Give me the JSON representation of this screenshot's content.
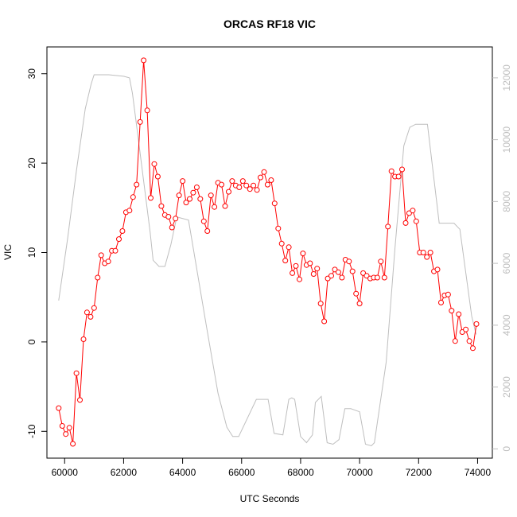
{
  "chart_data": {
    "type": "line",
    "title": "ORCAS RF18 VIC",
    "xlabel": "UTC Seconds",
    "ylabel": "VIC",
    "xlim": [
      59400,
      74500
    ],
    "ylim": [
      -13,
      33
    ],
    "y2lim": [
      -300,
      13000
    ],
    "xticks": [
      60000,
      62000,
      64000,
      66000,
      68000,
      70000,
      72000,
      74000
    ],
    "xtick_labels": [
      "60000",
      "62000",
      "64000",
      "66000",
      "68000",
      "70000",
      "72000",
      "74000"
    ],
    "yticks": [
      -10,
      0,
      10,
      20,
      30
    ],
    "ytick_labels": [
      "-10",
      "0",
      "10",
      "20",
      "30"
    ],
    "y2ticks": [
      0,
      2000,
      4000,
      6000,
      8000,
      10000,
      12000
    ],
    "y2tick_labels": [
      "0",
      "2000",
      "4000",
      "6000",
      "8000",
      "10000",
      "12000"
    ],
    "grid": false,
    "series": [
      {
        "color": "#ff0000",
        "axis": "left",
        "markers": "open-circle",
        "x": [
          59800,
          59920,
          60040,
          60160,
          60280,
          60400,
          60520,
          60640,
          60760,
          60880,
          61000,
          61120,
          61240,
          61360,
          61480,
          61600,
          61720,
          61840,
          61960,
          62080,
          62200,
          62320,
          62440,
          62560,
          62680,
          62800,
          62920,
          63040,
          63160,
          63280,
          63400,
          63520,
          63640,
          63760,
          63880,
          64000,
          64120,
          64240,
          64360,
          64480,
          64600,
          64720,
          64840,
          64960,
          65080,
          65200,
          65320,
          65440,
          65560,
          65680,
          65800,
          65920,
          66040,
          66160,
          66280,
          66400,
          66520,
          66640,
          66760,
          66880,
          67000,
          67120,
          67240,
          67360,
          67480,
          67600,
          67720,
          67840,
          67960,
          68080,
          68200,
          68320,
          68440,
          68560,
          68680,
          68800,
          68920,
          69040,
          69160,
          69280,
          69400,
          69520,
          69640,
          69760,
          69880,
          70000,
          70120,
          70240,
          70360,
          70480,
          70600,
          70720,
          70840,
          70960,
          71080,
          71200,
          71320,
          71440,
          71560,
          71680,
          71800,
          71920,
          72040,
          72160,
          72280,
          72400,
          72520,
          72640,
          72760,
          72880,
          73000,
          73120,
          73240,
          73360,
          73480,
          73600,
          73720,
          73840,
          73960
        ],
        "y": [
          -7.4,
          -9.4,
          -10.3,
          -9.6,
          -11.4,
          -3.5,
          -6.5,
          0.3,
          3.3,
          2.8,
          3.8,
          7.2,
          9.7,
          8.8,
          9.0,
          10.2,
          10.2,
          11.5,
          12.4,
          14.5,
          14.7,
          16.2,
          17.6,
          24.6,
          31.5,
          25.9,
          16.1,
          19.9,
          18.5,
          15.2,
          14.2,
          14.0,
          12.8,
          13.8,
          16.4,
          18.0,
          15.6,
          16.0,
          16.7,
          17.3,
          16.0,
          13.5,
          12.4,
          16.4,
          15.1,
          17.8,
          17.6,
          15.2,
          16.8,
          18.0,
          17.5,
          17.3,
          18.0,
          17.5,
          17.1,
          17.5,
          17.0,
          18.4,
          19.0,
          17.6,
          18.1,
          15.5,
          12.7,
          11.0,
          9.1,
          10.6,
          7.7,
          8.5,
          7.0,
          9.9,
          8.6,
          8.8,
          7.6,
          8.2,
          4.3,
          2.3,
          7.1,
          7.4,
          8.1,
          7.8,
          7.2,
          9.2,
          9.0,
          7.9,
          5.4,
          4.3,
          7.7,
          7.4,
          7.1,
          7.2,
          7.2,
          9.0,
          7.2,
          12.9,
          19.1,
          18.5,
          18.5,
          19.3,
          13.3,
          14.4,
          14.7,
          13.5,
          10.0,
          10.0,
          9.5,
          10.0,
          7.9,
          8.1,
          4.4,
          5.2,
          5.3,
          3.5,
          0.1,
          3.1,
          1.1,
          1.4,
          0.1,
          -0.7,
          2.0
        ]
      },
      {
        "color": "#bebebe",
        "axis": "right",
        "markers": "none",
        "x": [
          59800,
          60100,
          60400,
          60700,
          60900,
          61000,
          61500,
          62000,
          62200,
          62300,
          62500,
          62700,
          62900,
          63000,
          63200,
          63400,
          63600,
          63800,
          64200,
          64800,
          65200,
          65500,
          65700,
          65900,
          66500,
          66700,
          66900,
          67100,
          67400,
          67600,
          67700,
          67800,
          68000,
          68200,
          68400,
          68500,
          68700,
          68900,
          69100,
          69300,
          69500,
          69700,
          70000,
          70200,
          70400,
          70500,
          70900,
          71200,
          71500,
          71700,
          71900,
          72100,
          72300,
          72700,
          73000,
          73200,
          73400,
          73600,
          73800,
          73950
        ],
        "y": [
          4800,
          6800,
          9000,
          11000,
          11800,
          12100,
          12100,
          12050,
          12000,
          11500,
          10000,
          8500,
          7000,
          6100,
          5900,
          5900,
          6600,
          7500,
          7400,
          4000,
          1800,
          700,
          400,
          400,
          1600,
          1600,
          1600,
          500,
          450,
          1600,
          1650,
          1600,
          400,
          200,
          450,
          1500,
          1700,
          200,
          150,
          300,
          1300,
          1300,
          1200,
          150,
          100,
          200,
          2800,
          6500,
          9800,
          10400,
          10500,
          10500,
          10500,
          7300,
          7300,
          7300,
          7100,
          5700,
          4300,
          3700
        ]
      }
    ]
  }
}
